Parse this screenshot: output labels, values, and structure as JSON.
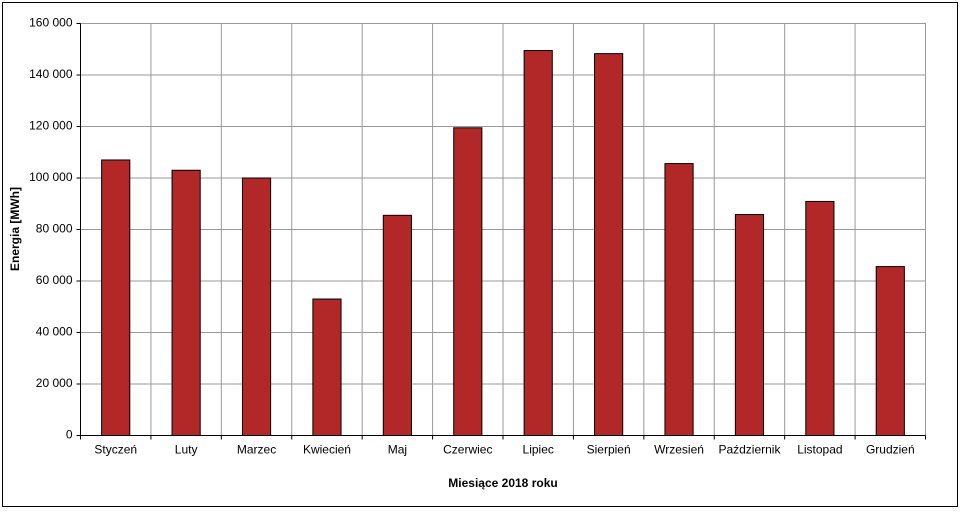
{
  "chart_data": {
    "type": "bar",
    "x_label": "Miesiące 2018  roku",
    "y_label": "Energia [MWh]",
    "categories": [
      "Styczeń",
      "Luty",
      "Marzec",
      "Kwiecień",
      "Maj",
      "Czerwiec",
      "Lipiec",
      "Sierpień",
      "Wrzesień",
      "Październik",
      "Listopad",
      "Grudzień"
    ],
    "values": [
      107000,
      103000,
      100000,
      53000,
      85500,
      119500,
      149500,
      148300,
      105600,
      85800,
      90900,
      65600
    ],
    "color": "#b22828",
    "ylim": [
      0,
      160000
    ],
    "yticks": [
      0,
      {
        "value": 20000,
        "label": "20 000"
      },
      {
        "value": 40000,
        "label": "40 000"
      },
      {
        "value": 60000,
        "label": "60 000"
      },
      {
        "value": 80000,
        "label": "80 000"
      },
      {
        "value": 100000,
        "label": "100 000"
      },
      {
        "value": 120000,
        "label": "120 000"
      },
      {
        "value": 140000,
        "label": "140 000"
      },
      {
        "value": 160000,
        "label": "160 000"
      }
    ],
    "grid": true
  }
}
